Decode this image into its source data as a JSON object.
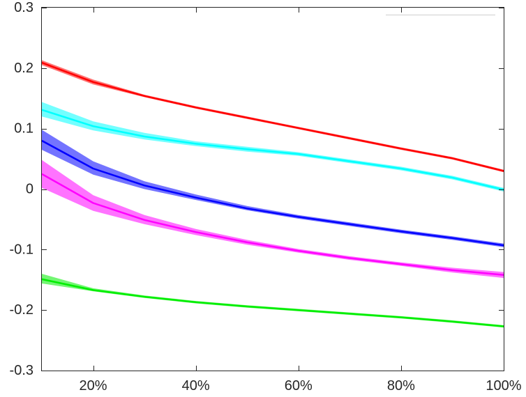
{
  "chart_data": {
    "type": "line",
    "x": [
      10,
      20,
      30,
      40,
      50,
      60,
      70,
      80,
      90,
      100
    ],
    "xlim": [
      10,
      100
    ],
    "ylim": [
      -0.3,
      0.3
    ],
    "xticks": [
      20,
      40,
      60,
      80,
      100
    ],
    "xtick_labels": [
      "20%",
      "40%",
      "60%",
      "80%",
      "100%"
    ],
    "yticks": [
      -0.3,
      -0.2,
      -0.1,
      0,
      0.1,
      0.2,
      0.3
    ],
    "ytick_labels": [
      "-0.3",
      "-0.2",
      "-0.1",
      "0",
      "0.1",
      "0.2",
      "0.3"
    ],
    "grid": false,
    "legend": "top-right",
    "series": [
      {
        "color": "#ff0000",
        "values": [
          0.209,
          0.177,
          0.154,
          0.135,
          0.118,
          0.101,
          0.084,
          0.067,
          0.051,
          0.03
        ],
        "lower": [
          0.205,
          0.173,
          0.152,
          0.133,
          0.116,
          0.099,
          0.082,
          0.065,
          0.049,
          0.028
        ],
        "upper": [
          0.213,
          0.181,
          0.156,
          0.137,
          0.12,
          0.103,
          0.086,
          0.069,
          0.053,
          0.032
        ]
      },
      {
        "color": "#00ffff",
        "values": [
          0.131,
          0.104,
          0.087,
          0.075,
          0.066,
          0.058,
          0.046,
          0.034,
          0.019,
          -0.001
        ],
        "lower": [
          0.12,
          0.097,
          0.082,
          0.071,
          0.062,
          0.055,
          0.043,
          0.031,
          0.016,
          -0.004
        ],
        "upper": [
          0.144,
          0.112,
          0.093,
          0.079,
          0.07,
          0.061,
          0.049,
          0.037,
          0.022,
          0.002
        ]
      },
      {
        "color": "#0000ff",
        "values": [
          0.08,
          0.034,
          0.006,
          -0.014,
          -0.032,
          -0.046,
          -0.058,
          -0.07,
          -0.081,
          -0.093
        ],
        "lower": [
          0.065,
          0.024,
          0.0,
          -0.018,
          -0.035,
          -0.049,
          -0.061,
          -0.073,
          -0.084,
          -0.096
        ],
        "upper": [
          0.098,
          0.046,
          0.013,
          -0.009,
          -0.028,
          -0.043,
          -0.055,
          -0.067,
          -0.078,
          -0.09
        ]
      },
      {
        "color": "#ff00ff",
        "values": [
          0.025,
          -0.023,
          -0.051,
          -0.071,
          -0.088,
          -0.102,
          -0.114,
          -0.124,
          -0.134,
          -0.142
        ],
        "lower": [
          0.002,
          -0.036,
          -0.058,
          -0.076,
          -0.092,
          -0.105,
          -0.117,
          -0.127,
          -0.138,
          -0.147
        ],
        "upper": [
          0.048,
          -0.01,
          -0.043,
          -0.066,
          -0.084,
          -0.099,
          -0.111,
          -0.121,
          -0.13,
          -0.137
        ]
      },
      {
        "color": "#00ee00",
        "values": [
          -0.149,
          -0.167,
          -0.178,
          -0.187,
          -0.194,
          -0.2,
          -0.206,
          -0.212,
          -0.219,
          -0.227
        ],
        "lower": [
          -0.156,
          -0.169,
          -0.18,
          -0.189,
          -0.196,
          -0.202,
          -0.208,
          -0.214,
          -0.221,
          -0.229
        ],
        "upper": [
          -0.14,
          -0.164,
          -0.176,
          -0.185,
          -0.192,
          -0.198,
          -0.204,
          -0.21,
          -0.217,
          -0.225
        ]
      }
    ]
  }
}
